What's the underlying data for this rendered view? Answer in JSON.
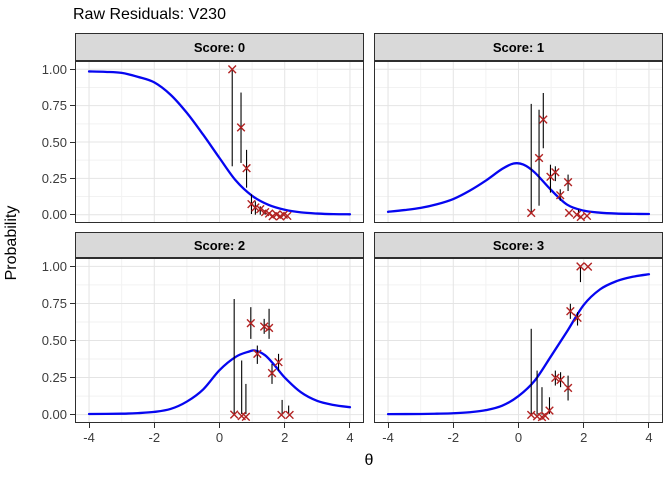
{
  "title": "Raw Residuals: V230",
  "axes": {
    "x_label": "θ",
    "y_label": "Probability",
    "x_ticks": [
      {
        "label": "-4",
        "value": -4
      },
      {
        "label": "-2",
        "value": -2
      },
      {
        "label": "0",
        "value": 0
      },
      {
        "label": "2",
        "value": 2
      },
      {
        "label": "4",
        "value": 4
      }
    ],
    "y_ticks": [
      {
        "label": "1.00",
        "value": 1.0
      },
      {
        "label": "0.75",
        "value": 0.75
      },
      {
        "label": "0.50",
        "value": 0.5
      },
      {
        "label": "0.25",
        "value": 0.25
      },
      {
        "label": "0.00",
        "value": 0.0
      }
    ]
  },
  "colors": {
    "curve": "#0606f0",
    "marker": "#b22222",
    "segment": "#000000",
    "strip_bg": "#d9d9d9",
    "panel_border": "#2e2e2e",
    "grid_major": "#e4e4e4",
    "grid_minor": "#f2f2f2",
    "axis_text": "#3c3c3c"
  },
  "chart_data": {
    "type": "line+scatter",
    "title": "Raw Residuals: V230",
    "xlabel": "θ",
    "ylabel": "Probability",
    "xlim": [
      -4,
      4
    ],
    "ylim": [
      0,
      1
    ],
    "grid": "major+minor",
    "legend": "none",
    "facet_layout": "2x2",
    "facets": [
      {
        "label": "Score: 0",
        "curve": [
          [
            -4,
            0.985
          ],
          [
            -3.5,
            0.982
          ],
          [
            -3,
            0.975
          ],
          [
            -2.5,
            0.948
          ],
          [
            -2,
            0.91
          ],
          [
            -1.5,
            0.825
          ],
          [
            -1,
            0.7
          ],
          [
            -0.5,
            0.55
          ],
          [
            0,
            0.39
          ],
          [
            0.5,
            0.235
          ],
          [
            1,
            0.13
          ],
          [
            1.5,
            0.068
          ],
          [
            2,
            0.034
          ],
          [
            2.5,
            0.016
          ],
          [
            3,
            0.008
          ],
          [
            3.5,
            0.004
          ],
          [
            4,
            0.003
          ]
        ],
        "points": [
          [
            0.39,
            1.0
          ],
          [
            0.66,
            0.6
          ],
          [
            0.83,
            0.32
          ],
          [
            0.98,
            0.073
          ],
          [
            1.1,
            0.05
          ],
          [
            1.25,
            0.038
          ],
          [
            1.4,
            0.018
          ],
          [
            1.52,
            0.008
          ],
          [
            1.63,
            -0.01
          ],
          [
            1.75,
            0.002
          ],
          [
            1.86,
            -0.012
          ],
          [
            1.97,
            0.0
          ],
          [
            2.08,
            -0.008
          ]
        ],
        "segments": [
          [
            0.39,
            0.333,
            1.0
          ],
          [
            0.66,
            0.356,
            0.84
          ],
          [
            0.83,
            0.186,
            0.446
          ],
          [
            0.98,
            0.005,
            0.14
          ],
          [
            1.1,
            0.0,
            0.092
          ],
          [
            1.25,
            0.0,
            0.058
          ],
          [
            1.4,
            0.0,
            0.032
          ]
        ]
      },
      {
        "label": "Score: 1",
        "curve": [
          [
            -4,
            0.02
          ],
          [
            -3.5,
            0.032
          ],
          [
            -3,
            0.047
          ],
          [
            -2.5,
            0.072
          ],
          [
            -2,
            0.108
          ],
          [
            -1.5,
            0.165
          ],
          [
            -1,
            0.235
          ],
          [
            -0.5,
            0.315
          ],
          [
            -0.15,
            0.352
          ],
          [
            0.15,
            0.345
          ],
          [
            0.5,
            0.29
          ],
          [
            1,
            0.17
          ],
          [
            1.5,
            0.068
          ],
          [
            2,
            0.028
          ],
          [
            2.5,
            0.014
          ],
          [
            3,
            0.008
          ],
          [
            3.5,
            0.006
          ],
          [
            4,
            0.005
          ]
        ],
        "points": [
          [
            0.39,
            0.012
          ],
          [
            0.63,
            0.39
          ],
          [
            0.76,
            0.654
          ],
          [
            0.98,
            0.261
          ],
          [
            1.13,
            0.292
          ],
          [
            1.28,
            0.134
          ],
          [
            1.52,
            0.224
          ],
          [
            1.55,
            0.012
          ],
          [
            1.79,
            0.0
          ],
          [
            1.91,
            -0.015
          ],
          [
            2.1,
            -0.008
          ]
        ],
        "segments": [
          [
            0.39,
            0.012,
            0.762
          ],
          [
            0.63,
            0.062,
            0.722
          ],
          [
            0.76,
            0.457,
            0.837
          ],
          [
            0.98,
            0.152,
            0.344
          ],
          [
            1.13,
            0.231,
            0.333
          ],
          [
            1.28,
            0.096,
            0.175
          ],
          [
            1.52,
            0.163,
            0.276
          ],
          [
            1.84,
            0.0,
            0.035
          ]
        ]
      },
      {
        "label": "Score: 2",
        "curve": [
          [
            -4,
            0.004
          ],
          [
            -3,
            0.006
          ],
          [
            -2.5,
            0.01
          ],
          [
            -2,
            0.018
          ],
          [
            -1.5,
            0.038
          ],
          [
            -1,
            0.088
          ],
          [
            -0.5,
            0.17
          ],
          [
            0,
            0.3
          ],
          [
            0.5,
            0.39
          ],
          [
            0.9,
            0.425
          ],
          [
            1.1,
            0.432
          ],
          [
            1.4,
            0.4
          ],
          [
            1.7,
            0.33
          ],
          [
            2,
            0.25
          ],
          [
            2.5,
            0.15
          ],
          [
            3,
            0.092
          ],
          [
            3.5,
            0.065
          ],
          [
            4,
            0.05
          ]
        ],
        "points": [
          [
            0.45,
            0.0
          ],
          [
            0.68,
            -0.01
          ],
          [
            0.81,
            -0.015
          ],
          [
            0.96,
            0.617
          ],
          [
            1.16,
            0.41
          ],
          [
            1.37,
            0.594
          ],
          [
            1.52,
            0.585
          ],
          [
            1.61,
            0.28
          ],
          [
            1.81,
            0.354
          ],
          [
            1.9,
            -0.002
          ],
          [
            2.15,
            -0.002
          ]
        ],
        "segments": [
          [
            0.45,
            0.004,
            0.78
          ],
          [
            0.68,
            0.004,
            0.365
          ],
          [
            0.81,
            0.004,
            0.207
          ],
          [
            0.96,
            0.511,
            0.725
          ],
          [
            1.16,
            0.342,
            0.466
          ],
          [
            1.37,
            0.545,
            0.646
          ],
          [
            1.52,
            0.511,
            0.714
          ],
          [
            1.61,
            0.207,
            0.342
          ],
          [
            1.81,
            0.297,
            0.41
          ],
          [
            1.92,
            0.004,
            0.099
          ],
          [
            2.12,
            0.004,
            0.061
          ]
        ]
      },
      {
        "label": "Score: 3",
        "curve": [
          [
            -4,
            0.003
          ],
          [
            -3,
            0.004
          ],
          [
            -2.5,
            0.006
          ],
          [
            -2,
            0.009
          ],
          [
            -1.5,
            0.016
          ],
          [
            -1,
            0.03
          ],
          [
            -0.5,
            0.06
          ],
          [
            0,
            0.125
          ],
          [
            0.5,
            0.23
          ],
          [
            1,
            0.395
          ],
          [
            1.5,
            0.565
          ],
          [
            2,
            0.74
          ],
          [
            2.5,
            0.845
          ],
          [
            3,
            0.9
          ],
          [
            3.5,
            0.93
          ],
          [
            4,
            0.947
          ]
        ],
        "points": [
          [
            0.39,
            -0.002
          ],
          [
            0.57,
            -0.012
          ],
          [
            0.72,
            -0.017
          ],
          [
            0.82,
            -0.008
          ],
          [
            0.95,
            0.027
          ],
          [
            1.13,
            0.248
          ],
          [
            1.29,
            0.234
          ],
          [
            1.52,
            0.18
          ],
          [
            1.59,
            0.698
          ],
          [
            1.81,
            0.653
          ],
          [
            1.9,
            1.0
          ],
          [
            2.13,
            0.998
          ]
        ],
        "segments": [
          [
            0.39,
            0.0,
            0.579
          ],
          [
            0.57,
            0.0,
            0.297
          ],
          [
            0.72,
            0.0,
            0.185
          ],
          [
            0.95,
            0.005,
            0.117
          ],
          [
            1.13,
            0.196,
            0.297
          ],
          [
            1.29,
            0.185,
            0.286
          ],
          [
            1.52,
            0.095,
            0.263
          ],
          [
            1.59,
            0.646,
            0.748
          ],
          [
            1.81,
            0.601,
            0.691
          ],
          [
            1.9,
            0.894,
            0.995
          ]
        ]
      }
    ]
  }
}
